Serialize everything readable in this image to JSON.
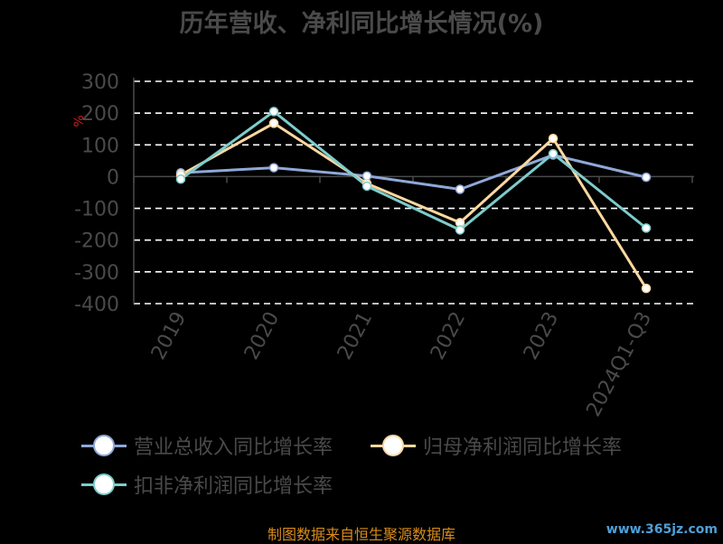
{
  "chart_data": {
    "type": "line",
    "title": "历年营收、净利同比增长情况(%)",
    "ylabel": "%",
    "xlabel": "",
    "categories": [
      "2019",
      "2020",
      "2021",
      "2022",
      "2023",
      "2024Q1-Q3"
    ],
    "ylim": [
      -400,
      300
    ],
    "yticks": [
      300,
      200,
      100,
      0,
      -100,
      -200,
      -300,
      -400
    ],
    "grid": true,
    "legend_position": "bottom",
    "series": [
      {
        "name": "营业总收入同比增长率",
        "color": "#8fa8d8",
        "values": [
          12,
          28,
          2,
          -40,
          68,
          -2
        ]
      },
      {
        "name": "归母净利润同比增长率",
        "color": "#ffd8a0",
        "values": [
          5,
          168,
          -22,
          -145,
          120,
          -352
        ]
      },
      {
        "name": "扣非净利润同比增长率",
        "color": "#7ecccc",
        "values": [
          -8,
          205,
          -30,
          -168,
          72,
          -162
        ]
      }
    ]
  },
  "footer": {
    "source": "制图数据来自恒生聚源数据库",
    "watermark": "www.365jz.com"
  }
}
